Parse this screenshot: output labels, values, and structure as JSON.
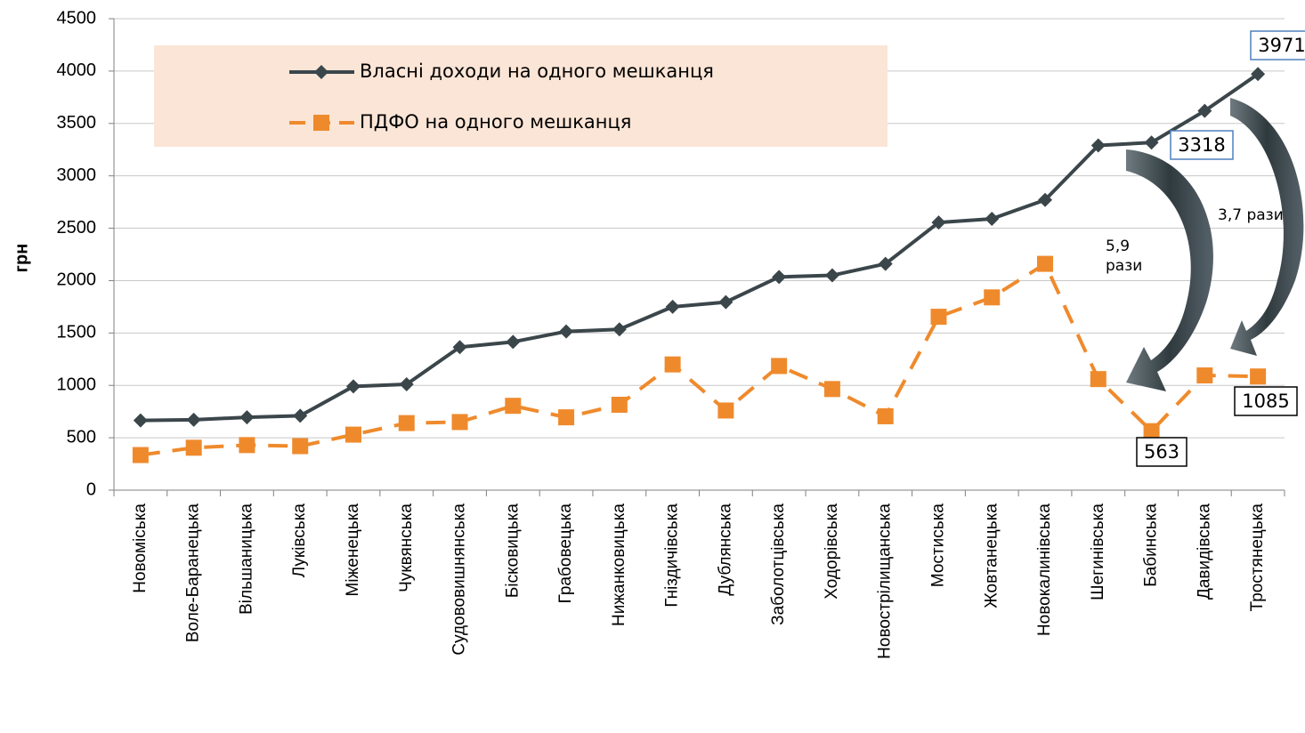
{
  "chart_data": {
    "type": "line",
    "y_label": "грн",
    "categories": [
      "Новоміська",
      "Воле-Баранецька",
      "Вільшаницька",
      "Луківська",
      "Міженецька",
      "Чуквянська",
      "Судововишнянська",
      "Бісковицька",
      "Грабовецька",
      "Нижанковицька",
      "Гніздичівська",
      "Дублянська",
      "Заболотцівська",
      "Ходорівська",
      "Новострілищанська",
      "Мостиська",
      "Жовтанецька",
      "Новокалинівська",
      "Шегинівська",
      "Бабинська",
      "Давидівська",
      "Тростянецька"
    ],
    "series": [
      {
        "name": "Власні доходи на одного мешканця",
        "color": "#3b464b",
        "marker": "diamond",
        "dash": false,
        "labeled": [
          21,
          19
        ],
        "values": [
          665,
          672,
          695,
          710,
          990,
          1010,
          1365,
          1415,
          1515,
          1535,
          1750,
          1795,
          2035,
          2050,
          2160,
          2555,
          2590,
          2770,
          3290,
          3318,
          3620,
          3971
        ]
      },
      {
        "name": "ПДФО на одного мешканця",
        "color": "#ef8a2c",
        "marker": "square",
        "dash": true,
        "labeled": [
          19,
          21
        ],
        "values": [
          335,
          405,
          430,
          420,
          530,
          640,
          650,
          805,
          695,
          815,
          1200,
          760,
          1185,
          965,
          705,
          1655,
          1840,
          2160,
          1060,
          563,
          1095,
          1085
        ]
      }
    ],
    "ylim": [
      0,
      4500
    ],
    "yticks": [
      0,
      500,
      1000,
      1500,
      2000,
      2500,
      3000,
      3500,
      4000,
      4500
    ],
    "grid": true,
    "annotations": [
      "5,9 рази",
      "3,7 рази"
    ]
  }
}
